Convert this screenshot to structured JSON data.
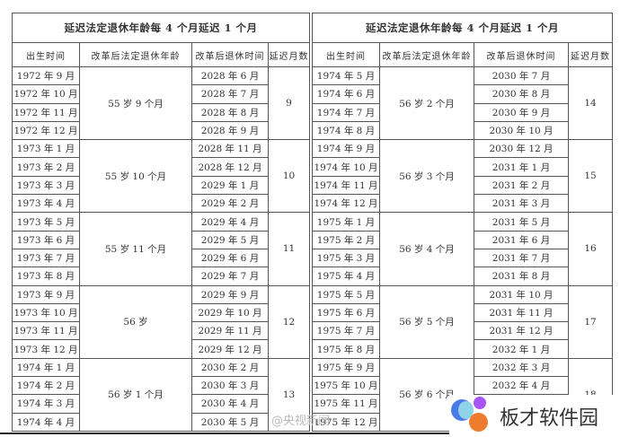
{
  "tables": [
    {
      "title": "延迟法定退休年龄每 4 个月延迟 1 个月",
      "headers": [
        "出生时间",
        "改革后法定退休年龄",
        "改革后退休时间",
        "延迟月数"
      ],
      "groups": [
        {
          "age": "55 岁 9 个月",
          "delay": "9",
          "births": [
            "1972 年 9 月",
            "1972 年 10 月",
            "1972 年 11 月",
            "1972 年 12 月"
          ],
          "retire": [
            "2028 年 6 月",
            "2028 年 7 月",
            "2028 年 8 月",
            "2028 年 9 月"
          ]
        },
        {
          "age": "55 岁 10 个月",
          "delay": "10",
          "births": [
            "1973 年 1 月",
            "1973 年 2 月",
            "1973 年 3 月",
            "1973 年 4 月"
          ],
          "retire": [
            "2028 年 11 月",
            "2028 年 12 月",
            "2029 年 1 月",
            "2029 年 2 月"
          ]
        },
        {
          "age": "55 岁 11 个月",
          "delay": "11",
          "births": [
            "1973 年 5 月",
            "1973 年 6 月",
            "1973 年 7 月",
            "1973 年 8 月"
          ],
          "retire": [
            "2029 年 4 月",
            "2029 年 5 月",
            "2029 年 6 月",
            "2029 年 7 月"
          ]
        },
        {
          "age": "56 岁",
          "delay": "12",
          "births": [
            "1973 年 9 月",
            "1973 年 10 月",
            "1973 年 11 月",
            "1973 年 12 月"
          ],
          "retire": [
            "2029 年 9 月",
            "2029 年 10 月",
            "2029 年 11 月",
            "2029 年 12 月"
          ]
        },
        {
          "age": "56 岁 1 个月",
          "delay": "13",
          "births": [
            "1974 年 1 月",
            "1974 年 2 月",
            "1974 年 3 月",
            "1974 年 4 月"
          ],
          "retire": [
            "2030 年 2 月",
            "2030 年 3 月",
            "2030 年 4 月",
            "2030 年 5 月"
          ]
        }
      ]
    },
    {
      "title": "延迟法定退休年龄每 4 个月延迟 1 个月",
      "headers": [
        "出生时间",
        "改革后法定退休年龄",
        "改革后退休时间",
        "延迟月数"
      ],
      "groups": [
        {
          "age": "56 岁 2 个月",
          "delay": "14",
          "births": [
            "1974 年 5 月",
            "1974 年 6 月",
            "1974 年 7 月",
            "1974 年 8 月"
          ],
          "retire": [
            "2030 年 7 月",
            "2030 年 8 月",
            "2030 年 9 月",
            "2030 年 10 月"
          ]
        },
        {
          "age": "56 岁 3 个月",
          "delay": "15",
          "births": [
            "1974 年 9 月",
            "1974 年 10 月",
            "1974 年 11 月",
            "1974 年 12 月"
          ],
          "retire": [
            "2030 年 12 月",
            "2031 年 1 月",
            "2031 年 2 月",
            "2031 年 3 月"
          ]
        },
        {
          "age": "56 岁 4 个月",
          "delay": "16",
          "births": [
            "1975 年 1 月",
            "1975 年 2 月",
            "1975 年 3 月",
            "1975 年 4 月"
          ],
          "retire": [
            "2031 年 5 月",
            "2031 年 6 月",
            "2031 年 7 月",
            "2031 年 8 月"
          ]
        },
        {
          "age": "56 岁 5 个月",
          "delay": "17",
          "births": [
            "1975 年 5 月",
            "1975 年 6 月",
            "1975 年 7 月",
            "1975 年 8 月"
          ],
          "retire": [
            "2031 年 10 月",
            "2031 年 11 月",
            "2031 年 12 月",
            "2032 年 1 月"
          ]
        },
        {
          "age": "56 岁 6 个月",
          "delay": "18",
          "births": [
            "1975 年 9 月",
            "1975 年 10 月",
            "1975 年 11 月",
            "1975 年 12 月"
          ],
          "retire": [
            "2032 年 3 月",
            "2032 年 4 月",
            "",
            ""
          ]
        }
      ]
    }
  ],
  "watermark": "@央视新闻",
  "logo": {
    "text": "板才软件园",
    "colors": [
      "#4a7be8",
      "#a855f7",
      "#f59e0b",
      "#e8743b"
    ]
  }
}
